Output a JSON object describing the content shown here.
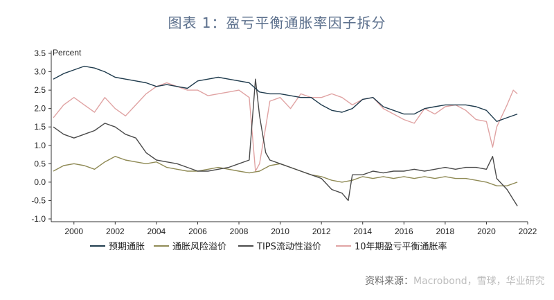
{
  "title": "图表 1：盈亏平衡通胀率因子拆分",
  "source_label": "资料来源：",
  "source_text": "Macrobond，雪球，华业研究",
  "chart_data": {
    "type": "line",
    "title": "图表 1：盈亏平衡通胀率因子拆分",
    "ylabel": "Percent",
    "xlabel": "",
    "ylim": [
      -1.0,
      3.5
    ],
    "xlim": [
      1998.9,
      2022.0
    ],
    "yticks": [
      "3.5",
      "3.0",
      "2.5",
      "2.0",
      "1.5",
      "1.0",
      "0.5",
      "0.0",
      "-0.5",
      "-1.0"
    ],
    "xticks": [
      "2000",
      "2002",
      "2004",
      "2006",
      "2008",
      "2010",
      "2012",
      "2014",
      "2016",
      "2018",
      "2020",
      "2022"
    ],
    "grid": false,
    "legend_position": "bottom",
    "colors": {
      "预期通胀": "#1f3b4d",
      "通胀风险溢价": "#8f8a55",
      "TIPS流动性溢价": "#4a4a4a",
      "10年期盈亏平衡通胀率": "#e0a3a3"
    },
    "series": [
      {
        "name": "预期通胀",
        "x": [
          1999.0,
          1999.5,
          2000.0,
          2000.5,
          2001.0,
          2001.5,
          2002.0,
          2002.5,
          2003.0,
          2003.5,
          2004.0,
          2004.5,
          2005.0,
          2005.5,
          2006.0,
          2006.5,
          2007.0,
          2007.5,
          2008.0,
          2008.5,
          2009.0,
          2009.5,
          2010.0,
          2010.5,
          2011.0,
          2011.5,
          2012.0,
          2012.5,
          2013.0,
          2013.5,
          2014.0,
          2014.5,
          2015.0,
          2015.5,
          2016.0,
          2016.5,
          2017.0,
          2017.5,
          2018.0,
          2018.5,
          2019.0,
          2019.5,
          2020.0,
          2020.5,
          2021.0,
          2021.5
        ],
        "y": [
          2.8,
          2.95,
          3.05,
          3.15,
          3.1,
          3.0,
          2.85,
          2.8,
          2.75,
          2.7,
          2.6,
          2.65,
          2.6,
          2.55,
          2.75,
          2.8,
          2.85,
          2.8,
          2.75,
          2.7,
          2.45,
          2.4,
          2.4,
          2.35,
          2.3,
          2.3,
          2.1,
          1.95,
          1.9,
          2.0,
          2.25,
          2.3,
          2.05,
          1.95,
          1.85,
          1.85,
          2.0,
          2.05,
          2.1,
          2.1,
          2.1,
          2.05,
          1.95,
          1.65,
          1.75,
          1.85
        ]
      },
      {
        "name": "通胀风险溢价",
        "x": [
          1999.0,
          1999.5,
          2000.0,
          2000.5,
          2001.0,
          2001.5,
          2002.0,
          2002.5,
          2003.0,
          2003.5,
          2004.0,
          2004.5,
          2005.0,
          2005.5,
          2006.0,
          2006.5,
          2007.0,
          2007.5,
          2008.0,
          2008.5,
          2009.0,
          2009.5,
          2010.0,
          2010.5,
          2011.0,
          2011.5,
          2012.0,
          2012.5,
          2013.0,
          2013.5,
          2014.0,
          2014.5,
          2015.0,
          2015.5,
          2016.0,
          2016.5,
          2017.0,
          2017.5,
          2018.0,
          2018.5,
          2019.0,
          2019.5,
          2020.0,
          2020.5,
          2021.0,
          2021.5
        ],
        "y": [
          0.3,
          0.45,
          0.5,
          0.45,
          0.35,
          0.55,
          0.7,
          0.6,
          0.55,
          0.5,
          0.55,
          0.4,
          0.35,
          0.3,
          0.3,
          0.35,
          0.4,
          0.35,
          0.3,
          0.25,
          0.3,
          0.45,
          0.5,
          0.4,
          0.3,
          0.2,
          0.15,
          0.05,
          0.0,
          0.05,
          0.15,
          0.1,
          0.15,
          0.1,
          0.15,
          0.1,
          0.15,
          0.1,
          0.15,
          0.1,
          0.1,
          0.05,
          0.0,
          -0.1,
          -0.1,
          0.0
        ]
      },
      {
        "name": "TIPS流动性溢价",
        "x": [
          1999.0,
          1999.5,
          2000.0,
          2000.5,
          2001.0,
          2001.5,
          2002.0,
          2002.5,
          2003.0,
          2003.5,
          2004.0,
          2004.5,
          2005.0,
          2005.5,
          2006.0,
          2006.5,
          2007.0,
          2007.5,
          2008.0,
          2008.5,
          2008.8,
          2009.0,
          2009.3,
          2009.5,
          2010.0,
          2010.5,
          2011.0,
          2011.5,
          2012.0,
          2012.5,
          2013.0,
          2013.3,
          2013.5,
          2014.0,
          2014.5,
          2015.0,
          2015.5,
          2016.0,
          2016.5,
          2017.0,
          2017.5,
          2018.0,
          2018.5,
          2019.0,
          2019.5,
          2020.0,
          2020.3,
          2020.5,
          2021.0,
          2021.5
        ],
        "y": [
          1.5,
          1.3,
          1.2,
          1.3,
          1.4,
          1.6,
          1.5,
          1.3,
          1.2,
          0.8,
          0.6,
          0.55,
          0.5,
          0.4,
          0.3,
          0.3,
          0.35,
          0.4,
          0.5,
          0.6,
          2.8,
          1.8,
          0.8,
          0.6,
          0.5,
          0.4,
          0.3,
          0.2,
          0.1,
          -0.2,
          -0.3,
          -0.5,
          0.2,
          0.2,
          0.3,
          0.25,
          0.3,
          0.3,
          0.35,
          0.3,
          0.35,
          0.4,
          0.35,
          0.4,
          0.4,
          0.35,
          0.7,
          0.1,
          -0.2,
          -0.65
        ]
      },
      {
        "name": "10年期盈亏平衡通胀率",
        "x": [
          1999.0,
          1999.5,
          2000.0,
          2000.5,
          2001.0,
          2001.5,
          2002.0,
          2002.5,
          2003.0,
          2003.5,
          2004.0,
          2004.5,
          2005.0,
          2005.5,
          2006.0,
          2006.5,
          2007.0,
          2007.5,
          2008.0,
          2008.5,
          2008.8,
          2009.0,
          2009.3,
          2009.5,
          2010.0,
          2010.5,
          2011.0,
          2011.5,
          2012.0,
          2012.5,
          2013.0,
          2013.5,
          2014.0,
          2014.5,
          2015.0,
          2015.5,
          2016.0,
          2016.5,
          2017.0,
          2017.5,
          2018.0,
          2018.5,
          2019.0,
          2019.5,
          2020.0,
          2020.3,
          2020.5,
          2021.0,
          2021.3,
          2021.5
        ],
        "y": [
          1.75,
          2.1,
          2.3,
          2.1,
          1.9,
          2.3,
          2.0,
          1.8,
          2.1,
          2.4,
          2.6,
          2.7,
          2.6,
          2.5,
          2.5,
          2.35,
          2.4,
          2.45,
          2.5,
          2.3,
          0.3,
          0.5,
          1.5,
          2.2,
          2.3,
          2.0,
          2.4,
          2.3,
          2.3,
          2.4,
          2.3,
          2.1,
          2.25,
          2.3,
          2.0,
          1.85,
          1.7,
          1.6,
          2.0,
          1.85,
          2.05,
          2.1,
          1.95,
          1.7,
          1.65,
          0.95,
          1.5,
          2.1,
          2.5,
          2.4
        ]
      }
    ]
  }
}
